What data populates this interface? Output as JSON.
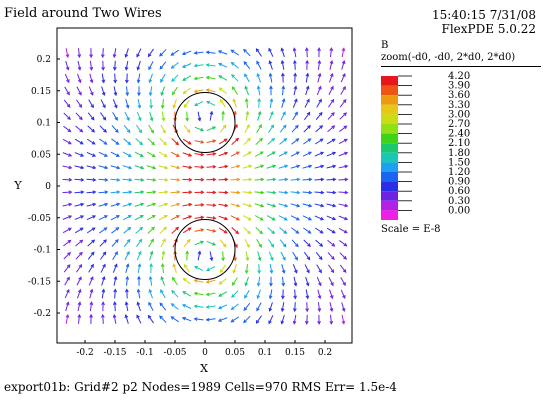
{
  "header": {
    "title": "Field around Two Wires",
    "timestamp": "15:40:15 7/31/08",
    "version": "FlexPDE 5.0.22"
  },
  "footer": {
    "status": "export01b:  Grid#2  p2  Nodes=1989 Cells=970 RMS Err= 1.5e-4"
  },
  "legend": {
    "variable": "B",
    "zoom": "zoom(-d0, -d0, 2*d0, 2*d0)",
    "scale": "Scale = E-8",
    "levels": [
      "4.20",
      "3.90",
      "3.60",
      "3.30",
      "3.00",
      "2.70",
      "2.40",
      "2.10",
      "1.80",
      "1.50",
      "1.20",
      "0.90",
      "0.60",
      "0.30",
      "0.00"
    ],
    "colors": [
      "#e8161a",
      "#ee5512",
      "#ee9a10",
      "#e6c914",
      "#cddb12",
      "#91e014",
      "#3fd21a",
      "#1ac86e",
      "#18c8b4",
      "#1aa2ee",
      "#1a64f0",
      "#2a2ee4",
      "#6a24e2",
      "#b222e4",
      "#ee20e8"
    ]
  },
  "chart_data": {
    "type": "vector-field",
    "title": "Field around Two Wires",
    "xlabel": "X",
    "ylabel": "Y",
    "xlim": [
      -0.24,
      0.24
    ],
    "ylim": [
      -0.23,
      0.23
    ],
    "x_ticks": [
      "-0.2",
      "-0.15",
      "-0.1",
      "-0.05",
      "0",
      "0.05",
      "0.1",
      "0.15",
      "0.2"
    ],
    "y_ticks": [
      "0.2",
      "0.15",
      "0.1",
      "0.05",
      "0",
      "-0.05",
      "-0.1",
      "-0.15",
      "-0.2"
    ],
    "wires": [
      {
        "x": 0.0,
        "y": 0.1,
        "r": 0.05,
        "rotation": "counter-clockwise"
      },
      {
        "x": 0.0,
        "y": -0.1,
        "r": 0.05,
        "rotation": "clockwise"
      }
    ],
    "magnitude_unit_scale": "E-8",
    "magnitude_range": [
      0.0,
      4.2
    ]
  }
}
